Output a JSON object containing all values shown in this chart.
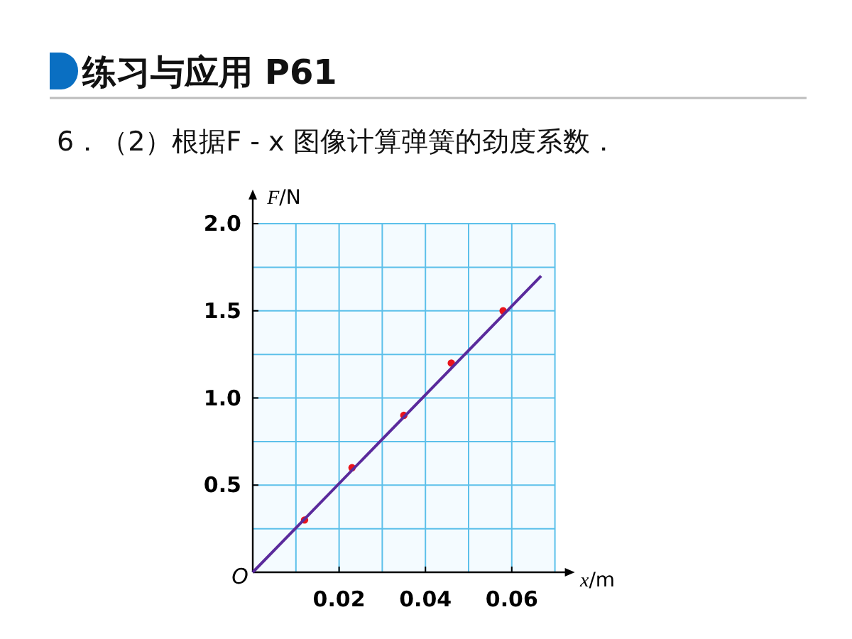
{
  "chart_data": {
    "type": "scatter",
    "title": "练习与应用 P61",
    "subtitle": "6．（2）根据F - x 图像计算弹簧的劲度系数．",
    "xlabel": "*x*/m",
    "ylabel": "*F*/N",
    "xlim": [
      0,
      0.07
    ],
    "ylim": [
      0,
      2.0
    ],
    "xticks": [
      0.02,
      0.04,
      0.06
    ],
    "annotations": [
      {
        "text": "O",
        "x": 0,
        "y": 0
      }
    ],
    "yticks": [
      0.5,
      {
        "value": 1,
        "label": "1.0"
      },
      1.5,
      {
        "value": 2,
        "label": "2.0"
      }
    ],
    "grid": true,
    "series": [
      {
        "marker": "circle",
        "color": "#e8141c",
        "x": [
          0.012,
          0.023,
          0.035,
          0.046,
          0.058
        ],
        "values": [
          0.3,
          0.6,
          0.9,
          1.2,
          1.5
        ]
      },
      {
        "type": "line",
        "color": "#5a2a9c",
        "x": [
          0,
          0.0668
        ],
        "values": [
          0,
          1.7
        ]
      }
    ]
  }
}
